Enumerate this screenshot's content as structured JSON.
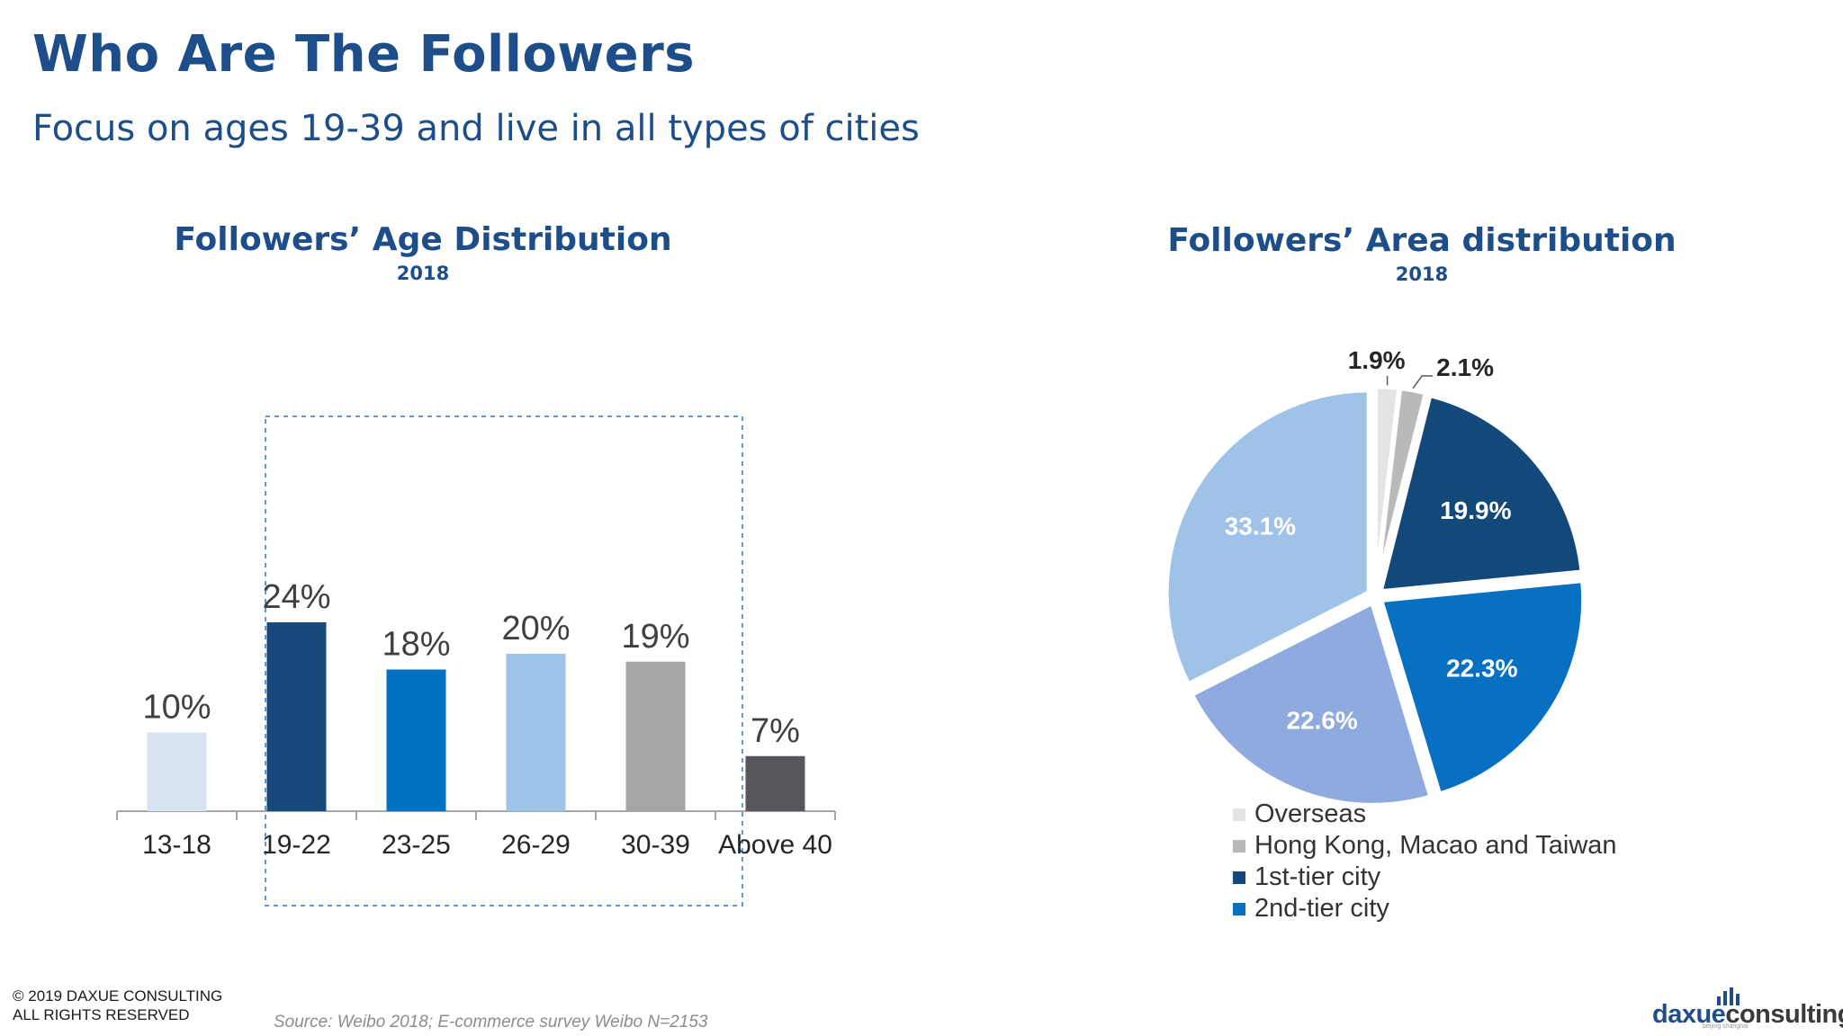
{
  "slide": {
    "title": "Who Are The Followers",
    "subtitle": "Focus on ages 19-39 and live in all types of cities"
  },
  "chart_data": [
    {
      "type": "bar",
      "title": "Followers’ Age Distribution",
      "subtitle": "2018",
      "categories": [
        "13-18",
        "19-22",
        "23-25",
        "26-29",
        "30-39",
        "Above 40"
      ],
      "values": [
        10,
        24,
        18,
        20,
        19,
        7
      ],
      "value_labels": [
        "10%",
        "24%",
        "18%",
        "20%",
        "19%",
        "7%"
      ],
      "colors": [
        "#dae3f1",
        "#17497b",
        "#0070c0",
        "#9dc3e6",
        "#a6a6a6",
        "#57565b"
      ],
      "highlight": {
        "from": "19-22",
        "to": "30-39",
        "style": "dashed-box"
      },
      "grid": false,
      "ylim": [
        0,
        30
      ]
    },
    {
      "type": "pie",
      "title": "Followers’ Area distribution",
      "subtitle": "2018",
      "slices": [
        {
          "name": "Overseas",
          "value": 1.9,
          "label": "1.9%",
          "color": "#e4e4e4"
        },
        {
          "name": "Hong Kong, Macao and Taiwan",
          "value": 2.1,
          "label": "2.1%",
          "color": "#b9b9b9"
        },
        {
          "name": "1st-tier city",
          "value": 19.9,
          "label": "19.9%",
          "color": "#13497a"
        },
        {
          "name": "2nd-tier city",
          "value": 22.3,
          "label": "22.3%",
          "color": "#0870c3"
        },
        {
          "name": "",
          "value": 22.6,
          "label": "22.6%",
          "color": "#8eaadf"
        },
        {
          "name": "",
          "value": 33.1,
          "label": "33.1%",
          "color": "#9ec3e7"
        }
      ],
      "legend": {
        "position": "bottom",
        "entries": [
          {
            "label": "Overseas",
            "color": "#e4e4e4"
          },
          {
            "label": "Hong Kong, Macao and Taiwan",
            "color": "#b9b9b9"
          },
          {
            "label": "1st-tier city",
            "color": "#13497a"
          },
          {
            "label": "2nd-tier city",
            "color": "#0870c3"
          }
        ]
      }
    }
  ],
  "footer": {
    "copyright_line1": "© 2019 DAXUE CONSULTING",
    "copyright_line2": "ALL RIGHTS RESERVED",
    "source": "Source: Weibo 2018; E-commerce survey Weibo N=2153",
    "logo_text_part1": "daxue",
    "logo_text_part2": "consulting",
    "logo_sub": "beijing shanghai",
    "logo_icon": "bar-chart-logo-icon"
  }
}
